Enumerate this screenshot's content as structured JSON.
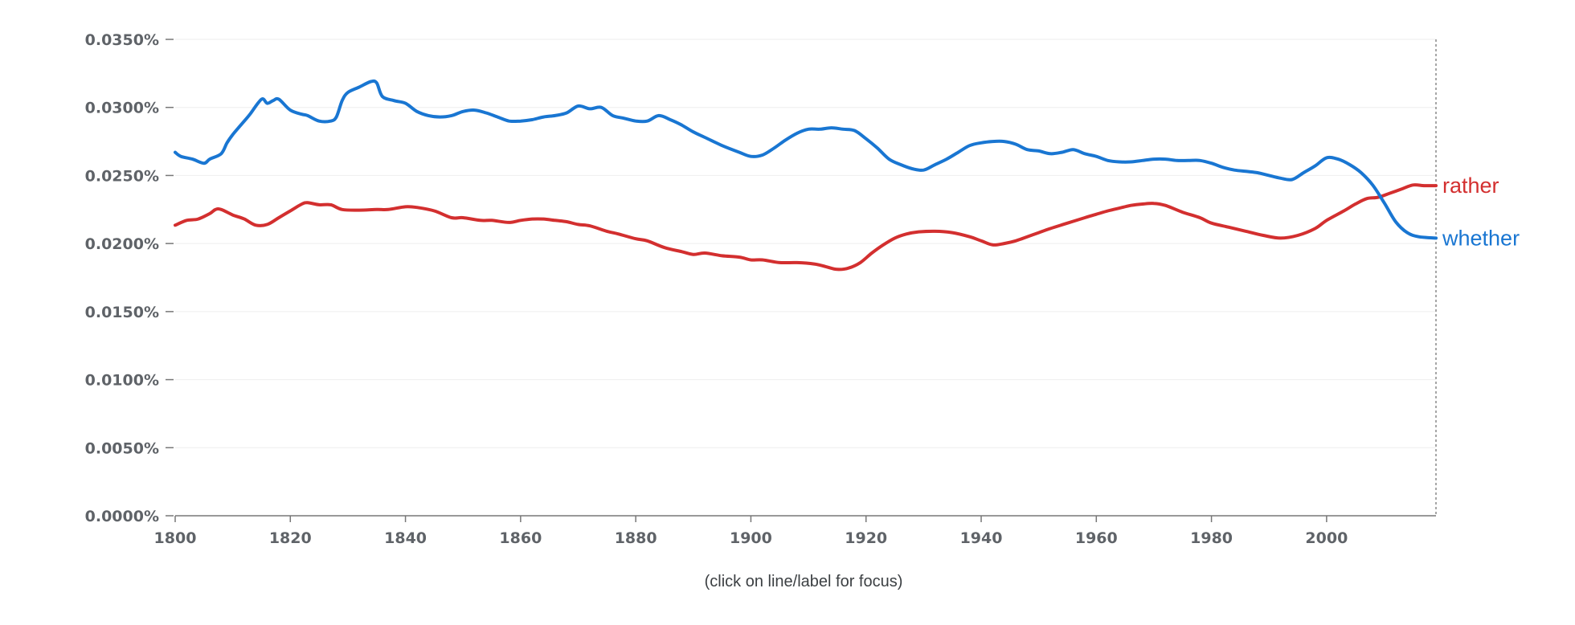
{
  "chart_data": {
    "type": "line",
    "title": "",
    "xlabel": "",
    "ylabel": "",
    "caption": "(click on line/label for focus)",
    "xlim": [
      1800,
      2019
    ],
    "ylim": [
      0,
      0.035
    ],
    "y_tick_values": [
      0,
      0.005,
      0.01,
      0.015,
      0.02,
      0.025,
      0.03,
      0.035
    ],
    "y_tick_labels": [
      "0.0000%",
      "0.0050%",
      "0.0100%",
      "0.0150%",
      "0.0200%",
      "0.0250%",
      "0.0300%",
      "0.0350%"
    ],
    "x_tick_values": [
      1800,
      1820,
      1840,
      1860,
      1880,
      1900,
      1920,
      1940,
      1960,
      1980,
      2000
    ],
    "x_tick_labels": [
      "1800",
      "1820",
      "1840",
      "1860",
      "1880",
      "1900",
      "1920",
      "1940",
      "1960",
      "1980",
      "2000"
    ],
    "grid": true,
    "series": [
      {
        "name": "rather",
        "color": "#d32f2f",
        "x": [
          1800,
          1802,
          1804,
          1806,
          1807,
          1808,
          1810,
          1812,
          1814,
          1816,
          1818,
          1820,
          1822,
          1823,
          1825,
          1827,
          1829,
          1832,
          1835,
          1837,
          1840,
          1842,
          1845,
          1848,
          1850,
          1853,
          1855,
          1858,
          1860,
          1862,
          1864,
          1866,
          1868,
          1870,
          1872,
          1875,
          1877,
          1880,
          1882,
          1885,
          1888,
          1890,
          1892,
          1895,
          1898,
          1900,
          1902,
          1905,
          1908,
          1911,
          1913,
          1915,
          1917,
          1919,
          1921,
          1923,
          1925,
          1927,
          1929,
          1932,
          1935,
          1938,
          1940,
          1942,
          1944,
          1946,
          1948,
          1950,
          1952,
          1955,
          1958,
          1960,
          1962,
          1964,
          1966,
          1968,
          1970,
          1972,
          1975,
          1978,
          1980,
          1983,
          1986,
          1989,
          1992,
          1995,
          1998,
          2000,
          2003,
          2005,
          2007,
          2009,
          2011,
          2013,
          2015,
          2017,
          2019
        ],
        "values": [
          0.02135,
          0.0217,
          0.0218,
          0.0222,
          0.0225,
          0.0225,
          0.0221,
          0.0218,
          0.02135,
          0.0214,
          0.0219,
          0.0224,
          0.0229,
          0.023,
          0.02285,
          0.02285,
          0.0225,
          0.02245,
          0.0225,
          0.0225,
          0.0227,
          0.02265,
          0.0224,
          0.0219,
          0.0219,
          0.0217,
          0.0217,
          0.02155,
          0.0217,
          0.0218,
          0.0218,
          0.0217,
          0.0216,
          0.0214,
          0.0213,
          0.0209,
          0.0207,
          0.02035,
          0.0202,
          0.0197,
          0.0194,
          0.0192,
          0.0193,
          0.0191,
          0.019,
          0.0188,
          0.0188,
          0.0186,
          0.0186,
          0.0185,
          0.0183,
          0.0181,
          0.0182,
          0.0186,
          0.0193,
          0.0199,
          0.0204,
          0.0207,
          0.02085,
          0.0209,
          0.0208,
          0.0205,
          0.0202,
          0.0199,
          0.02,
          0.0202,
          0.0205,
          0.0208,
          0.0211,
          0.0215,
          0.0219,
          0.02215,
          0.0224,
          0.0226,
          0.0228,
          0.0229,
          0.02295,
          0.0228,
          0.0223,
          0.0219,
          0.0215,
          0.0212,
          0.0209,
          0.0206,
          0.0204,
          0.0206,
          0.0211,
          0.0217,
          0.0224,
          0.0229,
          0.0233,
          0.0234,
          0.0237,
          0.024,
          0.0243,
          0.02425,
          0.02425
        ]
      },
      {
        "name": "whether",
        "color": "#1976d2",
        "x": [
          1800,
          1801,
          1803,
          1805,
          1806,
          1808,
          1809,
          1810,
          1812,
          1813,
          1815,
          1816,
          1817,
          1818,
          1820,
          1822,
          1823,
          1825,
          1827,
          1828,
          1829,
          1830,
          1832,
          1834,
          1835,
          1836,
          1838,
          1840,
          1842,
          1844,
          1846,
          1848,
          1850,
          1852,
          1854,
          1856,
          1858,
          1860,
          1862,
          1864,
          1866,
          1868,
          1870,
          1872,
          1874,
          1876,
          1878,
          1880,
          1882,
          1884,
          1886,
          1888,
          1890,
          1892,
          1895,
          1898,
          1900,
          1902,
          1904,
          1906,
          1908,
          1910,
          1912,
          1914,
          1916,
          1918,
          1920,
          1922,
          1924,
          1926,
          1928,
          1930,
          1932,
          1934,
          1936,
          1938,
          1940,
          1942,
          1944,
          1946,
          1948,
          1950,
          1952,
          1954,
          1956,
          1958,
          1960,
          1962,
          1964,
          1966,
          1968,
          1970,
          1972,
          1974,
          1976,
          1978,
          1980,
          1982,
          1984,
          1986,
          1988,
          1990,
          1992,
          1994,
          1996,
          1998,
          2000,
          2002,
          2004,
          2006,
          2008,
          2010,
          2012,
          2014,
          2016,
          2019
        ],
        "values": [
          0.0267,
          0.0264,
          0.0262,
          0.0259,
          0.0262,
          0.0266,
          0.0274,
          0.028,
          0.029,
          0.0295,
          0.0306,
          0.0303,
          0.0305,
          0.0306,
          0.0298,
          0.0295,
          0.0294,
          0.029,
          0.029,
          0.0293,
          0.0305,
          0.0311,
          0.0315,
          0.0319,
          0.0318,
          0.0308,
          0.0305,
          0.0303,
          0.0297,
          0.0294,
          0.0293,
          0.0294,
          0.0297,
          0.0298,
          0.0296,
          0.0293,
          0.029,
          0.029,
          0.0291,
          0.0293,
          0.0294,
          0.0296,
          0.0301,
          0.0299,
          0.03,
          0.0294,
          0.0292,
          0.029,
          0.029,
          0.0294,
          0.0291,
          0.0287,
          0.0282,
          0.0278,
          0.0272,
          0.0267,
          0.0264,
          0.0265,
          0.027,
          0.0276,
          0.0281,
          0.0284,
          0.0284,
          0.0285,
          0.0284,
          0.0283,
          0.0277,
          0.027,
          0.0262,
          0.0258,
          0.0255,
          0.0254,
          0.0258,
          0.0262,
          0.0267,
          0.0272,
          0.0274,
          0.0275,
          0.0275,
          0.0273,
          0.0269,
          0.0268,
          0.0266,
          0.0267,
          0.0269,
          0.0266,
          0.0264,
          0.0261,
          0.026,
          0.026,
          0.0261,
          0.0262,
          0.0262,
          0.0261,
          0.0261,
          0.0261,
          0.0259,
          0.0256,
          0.0254,
          0.0253,
          0.0252,
          0.025,
          0.0248,
          0.0247,
          0.0252,
          0.0257,
          0.0263,
          0.0262,
          0.0258,
          0.0252,
          0.0243,
          0.023,
          0.0216,
          0.0208,
          0.0205,
          0.0204
        ]
      }
    ]
  }
}
